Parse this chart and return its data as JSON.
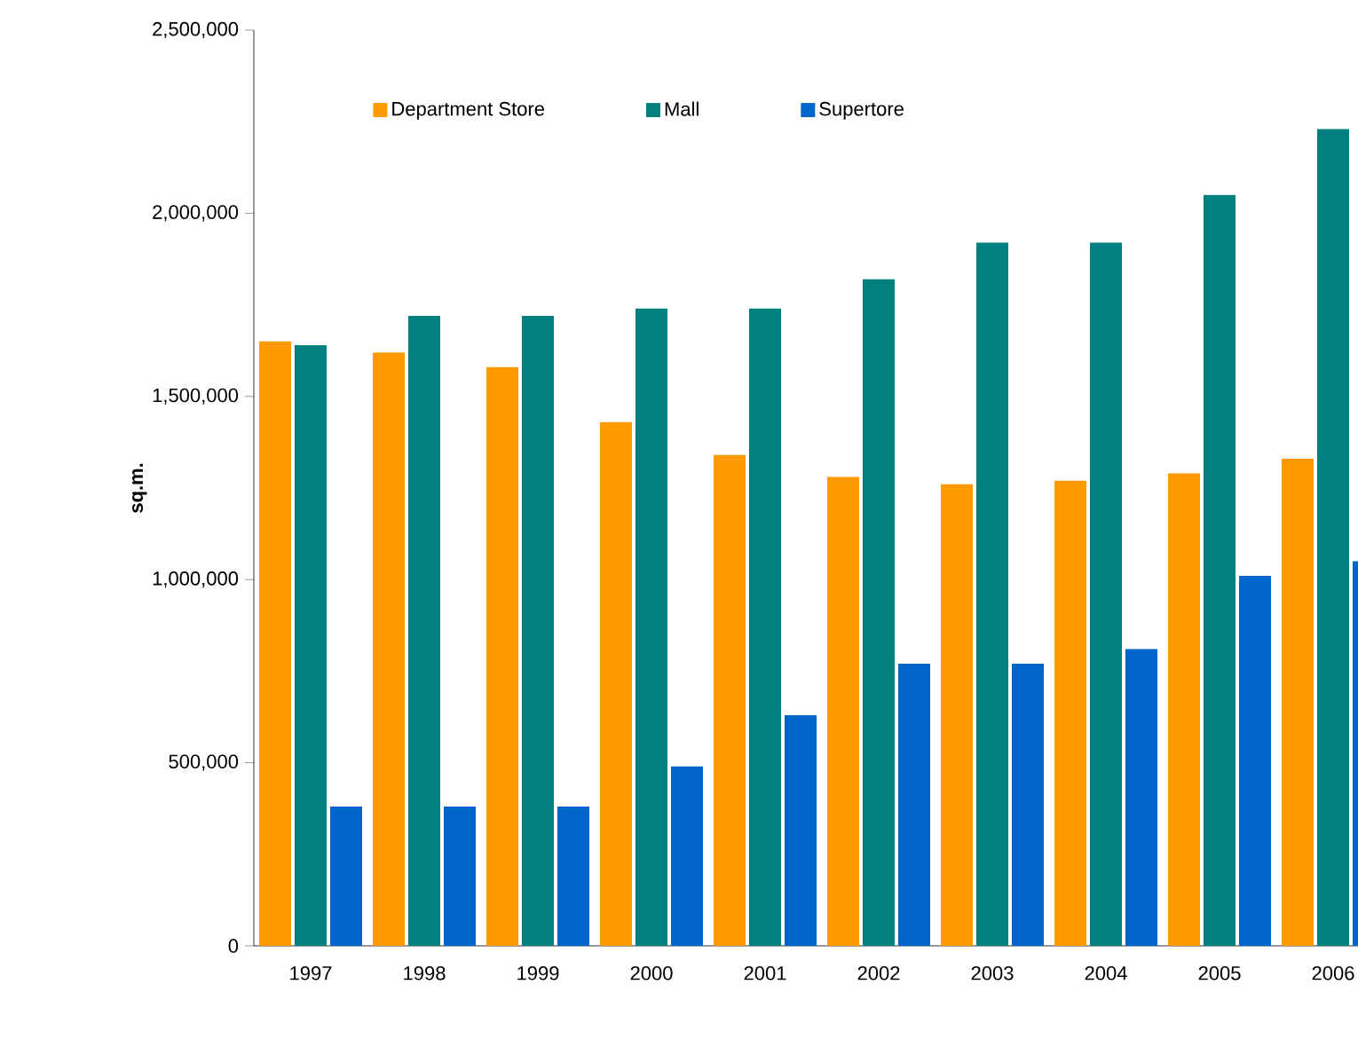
{
  "chart_data": {
    "type": "bar",
    "ylabel": "sq.m.",
    "categories": [
      "1997",
      "1998",
      "1999",
      "2000",
      "2001",
      "2002",
      "2003",
      "2004",
      "2005",
      "2006"
    ],
    "series": [
      {
        "name": "Department Store",
        "color": "#ff9900",
        "values": [
          1650000,
          1620000,
          1580000,
          1430000,
          1340000,
          1280000,
          1260000,
          1270000,
          1290000,
          1330000
        ]
      },
      {
        "name": "Mall",
        "color": "#008080",
        "values": [
          1640000,
          1720000,
          1720000,
          1740000,
          1740000,
          1820000,
          1920000,
          1920000,
          2050000,
          2230000
        ]
      },
      {
        "name": "Supertore",
        "color": "#0066cc",
        "values": [
          380000,
          380000,
          380000,
          490000,
          630000,
          770000,
          770000,
          810000,
          1010000,
          1050000
        ]
      }
    ],
    "ylim": [
      0,
      2500000
    ],
    "yticks": [
      {
        "value": 0,
        "label": "0"
      },
      {
        "value": 500000,
        "label": "500,000"
      },
      {
        "value": 1000000,
        "label": "1,000,000"
      },
      {
        "value": 1500000,
        "label": "1,500,000"
      },
      {
        "value": 2000000,
        "label": "2,000,000"
      },
      {
        "value": 2500000,
        "label": "2,500,000"
      }
    ],
    "grid": false,
    "legend": "top"
  }
}
